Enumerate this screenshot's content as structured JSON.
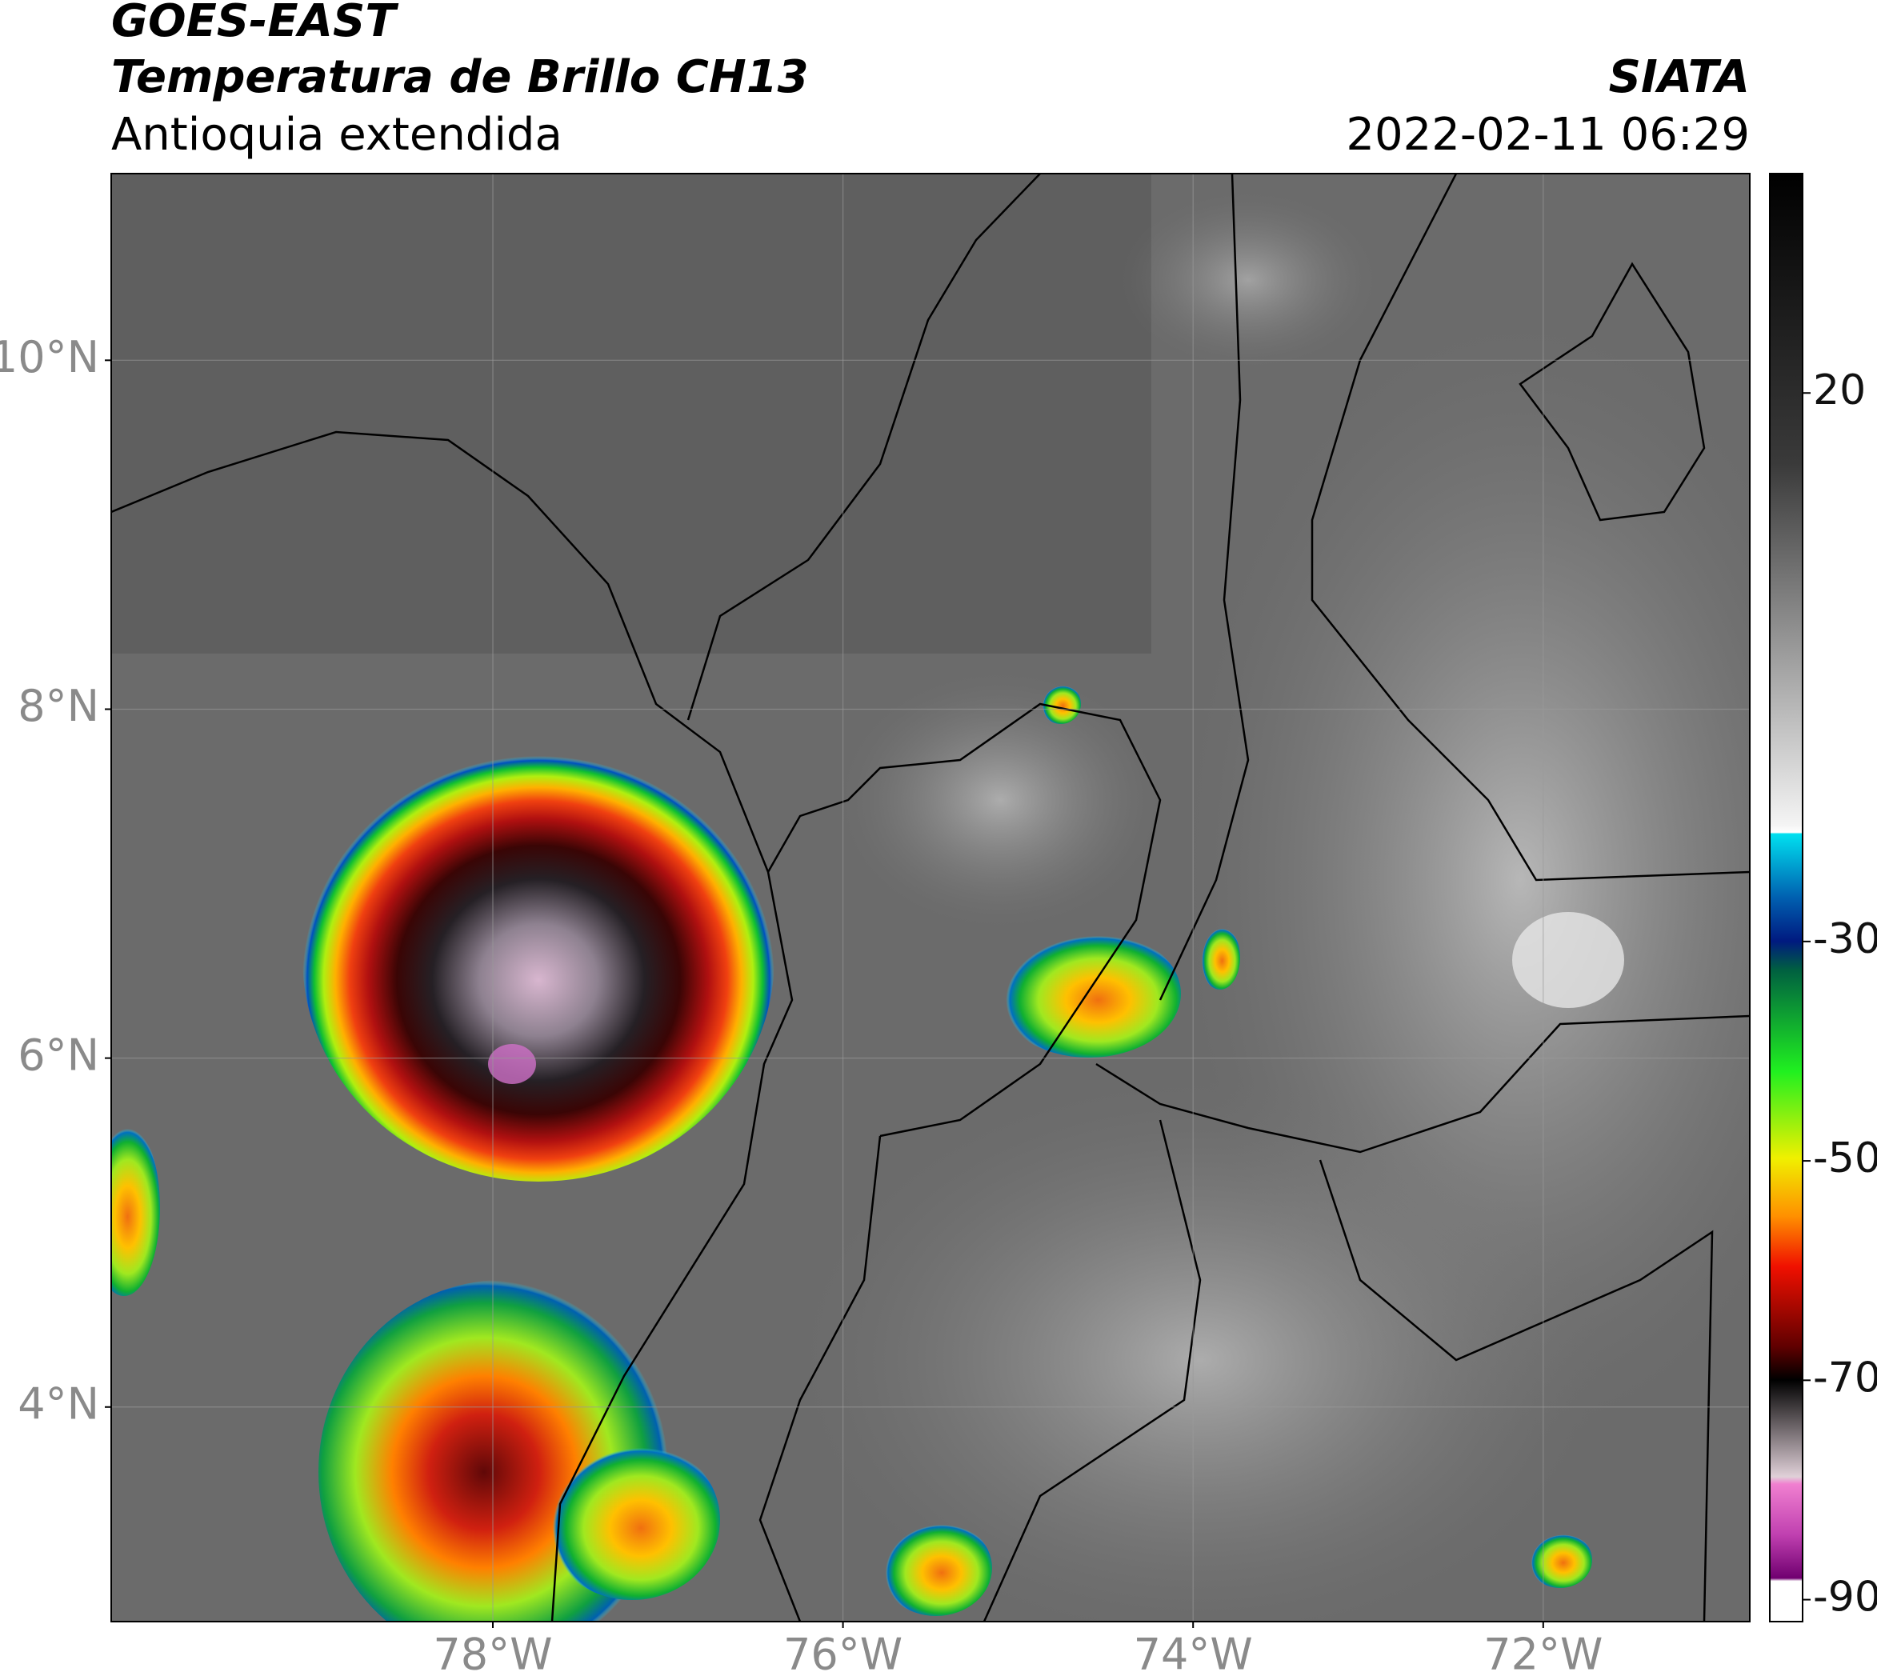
{
  "header": {
    "title": "GOES-EAST",
    "subtitle": "Temperatura de Brillo CH13",
    "region": "Antioquia extendida",
    "source": "SIATA",
    "datetime": "2022-02-11 06:29"
  },
  "map": {
    "xlim": [
      -80.18,
      -70.82
    ],
    "ylim": [
      2.77,
      11.07
    ],
    "xticks": [
      {
        "value": -78,
        "label": "78°W"
      },
      {
        "value": -76,
        "label": "76°W"
      },
      {
        "value": -74,
        "label": "74°W"
      },
      {
        "value": -72,
        "label": "72°W"
      }
    ],
    "yticks": [
      {
        "value": 4,
        "label": "4°N"
      },
      {
        "value": 6,
        "label": "6°N"
      },
      {
        "value": 8,
        "label": "8°N"
      },
      {
        "value": 10,
        "label": "10°N"
      }
    ],
    "grid": true
  },
  "colorbar": {
    "lim": [
      -92,
      40
    ],
    "ticks": [
      20,
      -30,
      -50,
      -70,
      -90
    ]
  }
}
